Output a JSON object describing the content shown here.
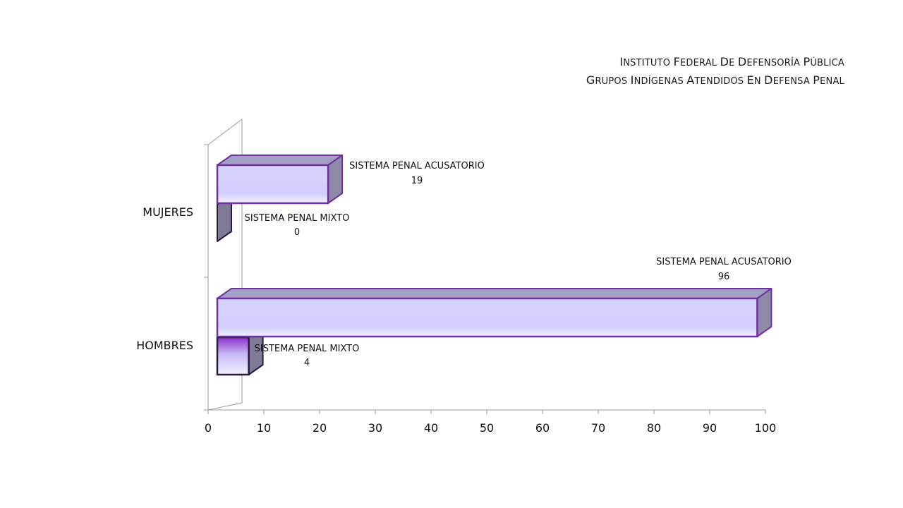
{
  "title": {
    "line1": "Instituto Federal de Defensoría Pública",
    "line2": "Grupos Indígenas  Atendidos en Defensa Penal"
  },
  "chart_data": {
    "type": "bar",
    "orientation": "horizontal",
    "three_d": true,
    "categories": [
      "MUJERES",
      "HOMBRES"
    ],
    "series": [
      {
        "name": "SISTEMA PENAL ACUSATORIO",
        "values": [
          19,
          96
        ],
        "color": "#d4d0ff",
        "side_color": "#8f8aa8",
        "top_color": "#a39fc7",
        "border_color": "#7030a0"
      },
      {
        "name": "SISTEMA PENAL MIXTO",
        "values": [
          0,
          4
        ],
        "color": "#c9c3f5",
        "side_color": "#7f7a96",
        "top_color": "#7b2fb5",
        "border_color": "#2a1840"
      }
    ],
    "data_labels": [
      {
        "category": "MUJERES",
        "series": "SISTEMA PENAL ACUSATORIO",
        "text": "SISTEMA PENAL ACUSATORIO",
        "value": "19"
      },
      {
        "category": "MUJERES",
        "series": "SISTEMA PENAL MIXTO",
        "text": "SISTEMA PENAL MIXTO",
        "value": "0"
      },
      {
        "category": "HOMBRES",
        "series": "SISTEMA PENAL ACUSATORIO",
        "text": "SISTEMA PENAL ACUSATORIO",
        "value": "96"
      },
      {
        "category": "HOMBRES",
        "series": "SISTEMA PENAL MIXTO",
        "text": "SISTEMA PENAL MIXTO",
        "value": "4"
      }
    ],
    "xlim": [
      0,
      100
    ],
    "xticks": [
      "0",
      "10",
      "20",
      "30",
      "40",
      "50",
      "60",
      "70",
      "80",
      "90",
      "100"
    ],
    "xlabel": "",
    "ylabel": "",
    "legend": "none",
    "grid": false
  }
}
